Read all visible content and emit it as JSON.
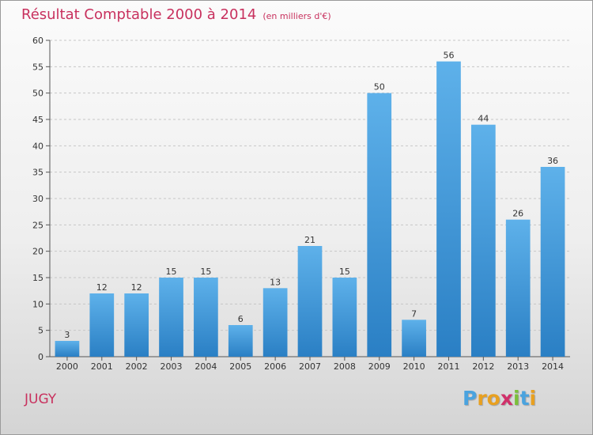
{
  "title": "Résultat Comptable 2000 à 2014",
  "unit": "(en milliers d'€)",
  "place": "JUGY",
  "brand": {
    "letters": [
      "P",
      "r",
      "o",
      "x",
      "i",
      "t",
      "i"
    ]
  },
  "colors": {
    "title": "#c8315e",
    "bar_light": "#5eb1ea",
    "bar_dark": "#2a7fc4",
    "brand": [
      "#4aa3df",
      "#e8a020",
      "#e8a020",
      "#d0306a",
      "#7bbf3a",
      "#4aa3df",
      "#e8a020"
    ]
  },
  "chart_data": {
    "type": "bar",
    "title": "Résultat Comptable 2000 à 2014",
    "xlabel": "",
    "ylabel": "",
    "categories": [
      "2000",
      "2001",
      "2002",
      "2003",
      "2004",
      "2005",
      "2006",
      "2007",
      "2008",
      "2009",
      "2010",
      "2011",
      "2012",
      "2013",
      "2014"
    ],
    "values": [
      3,
      12,
      12,
      15,
      15,
      6,
      13,
      21,
      15,
      50,
      7,
      56,
      44,
      26,
      36
    ],
    "ylim": [
      0,
      60
    ],
    "yticks": [
      0,
      5,
      10,
      15,
      20,
      25,
      30,
      35,
      40,
      45,
      50,
      55,
      60
    ],
    "grid": true
  }
}
